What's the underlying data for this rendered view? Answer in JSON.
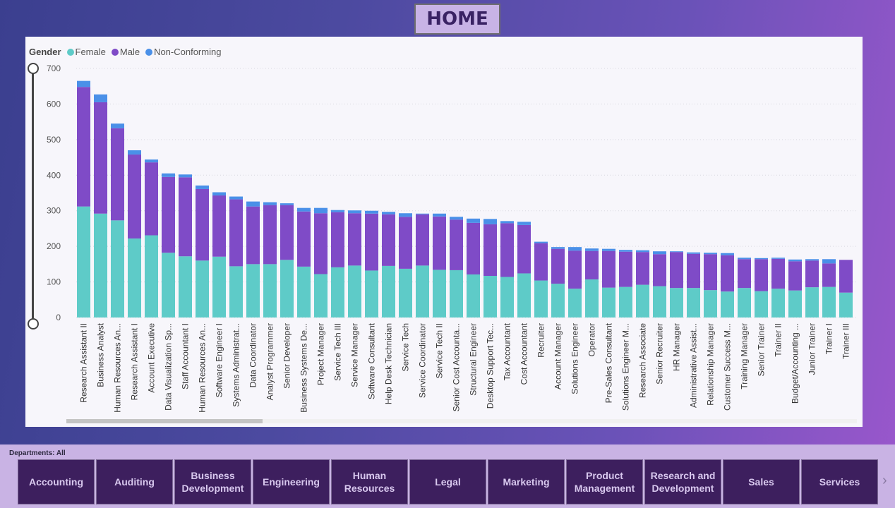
{
  "header": {
    "home_label": "HOME"
  },
  "legend": {
    "title": "Gender",
    "items": [
      {
        "label": "Female",
        "color": "#5ecbc8"
      },
      {
        "label": "Male",
        "color": "#7f4bc7"
      },
      {
        "label": "Non-Conforming",
        "color": "#4a90e8"
      }
    ]
  },
  "chart_data": {
    "type": "bar",
    "stacked": true,
    "ylim": [
      0,
      700
    ],
    "yticks": [
      0,
      100,
      200,
      300,
      400,
      500,
      600,
      700
    ],
    "grid": true,
    "legend_position": "top-left",
    "categories": [
      "Research Assistant II",
      "Business Analyst",
      "Human Resources An...",
      "Research Assistant I",
      "Account Executive",
      "Data Visualization Sp...",
      "Staff Accountant I",
      "Human Resources An...",
      "Software Engineer I",
      "Systems Administrat...",
      "Data Coordinator",
      "Analyst Programmer",
      "Senior Developer",
      "Business Systems De...",
      "Project Manager",
      "Service Tech III",
      "Service Manager",
      "Software Consultant",
      "Help Desk Technician",
      "Service Tech",
      "Service Coordinator",
      "Service Tech II",
      "Senior Cost Accounta...",
      "Structural Engineer",
      "Desktop Support Tec...",
      "Tax Accountant",
      "Cost Accountant",
      "Recruiter",
      "Account Manager",
      "Solutions Engineer",
      "Operator",
      "Pre-Sales Consultant",
      "Solutions Engineer M...",
      "Research Associate",
      "Senior Recruiter",
      "HR Manager",
      "Administrative Assist...",
      "Relationship Manager",
      "Customer Success M...",
      "Training Manager",
      "Senior Trainer",
      "Trainer II",
      "Budget/Accounting ...",
      "Junior Trainer",
      "Trainer I",
      "Trainer III"
    ],
    "series": [
      {
        "name": "Female",
        "color": "#5ecbc8",
        "values": [
          312,
          292,
          273,
          222,
          231,
          182,
          172,
          160,
          171,
          144,
          150,
          150,
          162,
          143,
          122,
          141,
          146,
          132,
          145,
          137,
          146,
          134,
          133,
          121,
          117,
          114,
          124,
          104,
          95,
          81,
          107,
          84,
          86,
          92,
          88,
          83,
          83,
          77,
          73,
          83,
          74,
          81,
          76,
          85,
          86,
          70
        ]
      },
      {
        "name": "Male",
        "color": "#7f4bc7",
        "values": [
          336,
          313,
          259,
          236,
          205,
          213,
          222,
          201,
          172,
          188,
          162,
          166,
          154,
          155,
          171,
          155,
          147,
          160,
          145,
          146,
          144,
          150,
          142,
          145,
          145,
          151,
          136,
          105,
          98,
          107,
          80,
          103,
          99,
          92,
          90,
          101,
          96,
          101,
          102,
          81,
          90,
          84,
          82,
          75,
          66,
          92
        ]
      },
      {
        "name": "Non-Conforming",
        "color": "#4a90e8",
        "values": [
          17,
          22,
          13,
          12,
          8,
          10,
          8,
          10,
          9,
          8,
          14,
          8,
          5,
          10,
          15,
          6,
          8,
          8,
          7,
          10,
          2,
          8,
          8,
          12,
          15,
          6,
          9,
          4,
          5,
          10,
          7,
          6,
          5,
          5,
          8,
          2,
          4,
          4,
          6,
          4,
          3,
          3,
          5,
          4,
          12,
          0
        ]
      }
    ]
  },
  "departments": {
    "label": "Departments: All",
    "items": [
      "Accounting",
      "Auditing",
      "Business Development",
      "Engineering",
      "Human Resources",
      "Legal",
      "Marketing",
      "Product Management",
      "Research and Development",
      "Sales",
      "Services"
    ]
  }
}
